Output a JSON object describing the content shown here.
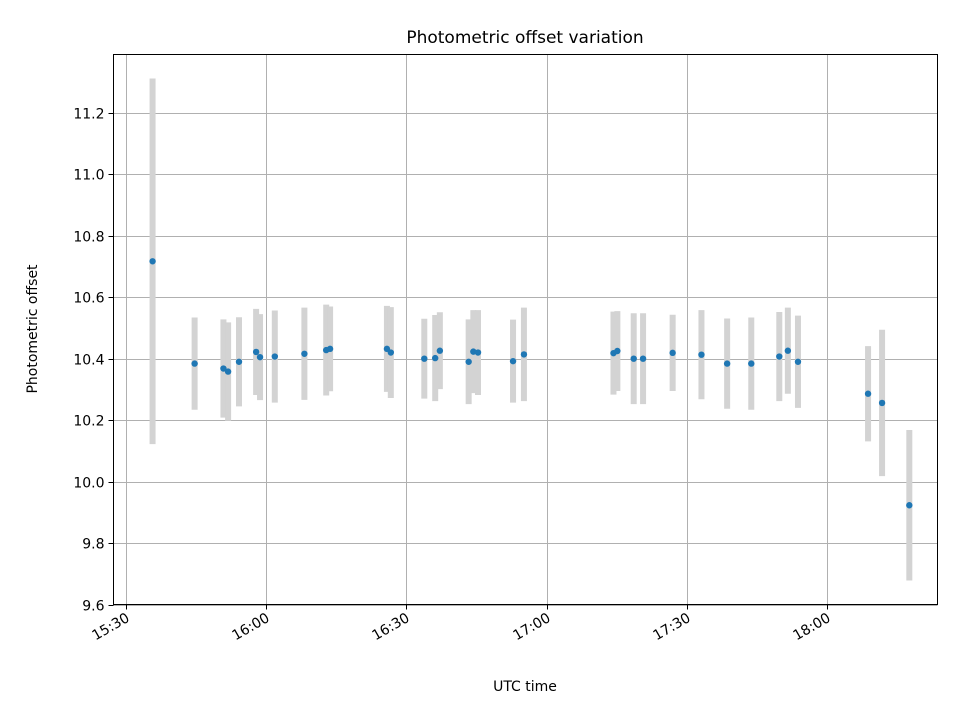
{
  "chart_data": {
    "type": "scatter",
    "title": "Photometric offset variation",
    "xlabel": "UTC time",
    "ylabel": "Photometric offset",
    "x_ticks": [
      "15:30",
      "16:00",
      "16:30",
      "17:00",
      "17:30",
      "18:00"
    ],
    "x_tick_minutes": [
      930,
      960,
      990,
      1020,
      1050,
      1080
    ],
    "xlim_minutes": [
      927.3,
      1103.7
    ],
    "y_ticks": [
      "9.6",
      "9.8",
      "10.0",
      "10.2",
      "10.4",
      "10.6",
      "10.8",
      "11.0",
      "11.2"
    ],
    "ylim": [
      9.6,
      11.39
    ],
    "grid": true,
    "colors": {
      "marker": "#1f77b4",
      "errorbar": "#d3d3d3",
      "grid": "#b0b0b0"
    },
    "series": [
      {
        "points": [
          {
            "t": "15:35:40",
            "y": 10.717,
            "yerr": 0.595
          },
          {
            "t": "15:44:40",
            "y": 10.384,
            "yerr": 0.15
          },
          {
            "t": "15:50:50",
            "y": 10.368,
            "yerr": 0.16
          },
          {
            "t": "15:51:50",
            "y": 10.358,
            "yerr": 0.16
          },
          {
            "t": "15:54:10",
            "y": 10.39,
            "yerr": 0.145
          },
          {
            "t": "15:57:50",
            "y": 10.422,
            "yerr": 0.14
          },
          {
            "t": "15:58:40",
            "y": 10.405,
            "yerr": 0.14
          },
          {
            "t": "16:01:50",
            "y": 10.407,
            "yerr": 0.15
          },
          {
            "t": "16:08:10",
            "y": 10.416,
            "yerr": 0.15
          },
          {
            "t": "16:12:50",
            "y": 10.428,
            "yerr": 0.148
          },
          {
            "t": "16:13:40",
            "y": 10.432,
            "yerr": 0.138
          },
          {
            "t": "16:25:50",
            "y": 10.432,
            "yerr": 0.14
          },
          {
            "t": "16:26:40",
            "y": 10.42,
            "yerr": 0.148
          },
          {
            "t": "16:33:50",
            "y": 10.4,
            "yerr": 0.13
          },
          {
            "t": "16:36:10",
            "y": 10.402,
            "yerr": 0.14
          },
          {
            "t": "16:37:10",
            "y": 10.426,
            "yerr": 0.125
          },
          {
            "t": "16:43:20",
            "y": 10.39,
            "yerr": 0.138
          },
          {
            "t": "16:44:20",
            "y": 10.423,
            "yerr": 0.135
          },
          {
            "t": "16:45:20",
            "y": 10.42,
            "yerr": 0.138
          },
          {
            "t": "16:52:50",
            "y": 10.392,
            "yerr": 0.135
          },
          {
            "t": "16:55:10",
            "y": 10.414,
            "yerr": 0.152
          },
          {
            "t": "17:14:20",
            "y": 10.418,
            "yerr": 0.135
          },
          {
            "t": "17:15:10",
            "y": 10.425,
            "yerr": 0.13
          },
          {
            "t": "17:18:40",
            "y": 10.4,
            "yerr": 0.148
          },
          {
            "t": "17:20:40",
            "y": 10.4,
            "yerr": 0.148
          },
          {
            "t": "17:27:00",
            "y": 10.419,
            "yerr": 0.124
          },
          {
            "t": "17:33:10",
            "y": 10.413,
            "yerr": 0.145
          },
          {
            "t": "17:38:40",
            "y": 10.384,
            "yerr": 0.147
          },
          {
            "t": "17:43:50",
            "y": 10.384,
            "yerr": 0.15
          },
          {
            "t": "17:49:50",
            "y": 10.407,
            "yerr": 0.145
          },
          {
            "t": "17:51:40",
            "y": 10.426,
            "yerr": 0.14
          },
          {
            "t": "17:53:50",
            "y": 10.39,
            "yerr": 0.15
          },
          {
            "t": "18:08:50",
            "y": 10.286,
            "yerr": 0.155
          },
          {
            "t": "18:11:50",
            "y": 10.256,
            "yerr": 0.238
          },
          {
            "t": "18:17:40",
            "y": 9.923,
            "yerr": 0.245
          }
        ]
      }
    ]
  }
}
